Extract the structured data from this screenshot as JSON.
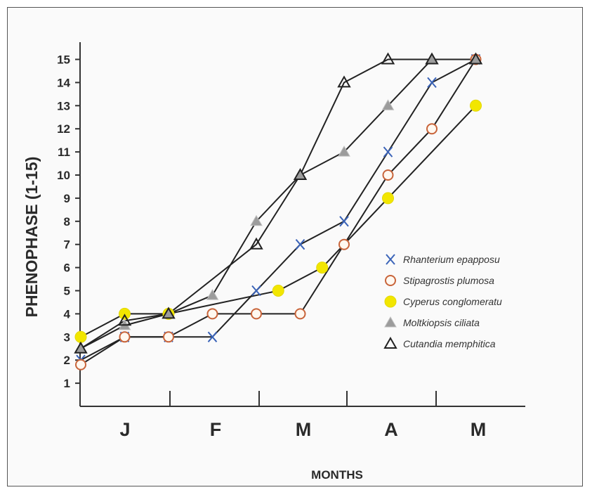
{
  "chart_data": {
    "type": "line",
    "xlabel": "MONTHS",
    "ylabel": "PHENOPHASE (1-15)",
    "x_tick_labels": [
      "J",
      "F",
      "M",
      "A",
      "M"
    ],
    "y_ticks": [
      1,
      2,
      3,
      4,
      5,
      6,
      7,
      8,
      9,
      10,
      11,
      12,
      13,
      14,
      15
    ],
    "ylim": [
      0,
      15
    ],
    "grid": false,
    "legend_position": "right",
    "series": [
      {
        "name": "Rhanterium epapposu",
        "marker": "x",
        "color": "#3a63b8",
        "x": [
          0,
          1,
          2,
          3,
          4,
          5,
          6,
          7,
          8,
          9
        ],
        "values": [
          2,
          3,
          3,
          3,
          5,
          7,
          8,
          11,
          14,
          15
        ]
      },
      {
        "name": "Stipagrostis plumosa",
        "marker": "circle",
        "color": "#c8643a",
        "x": [
          0,
          1,
          2,
          3,
          4,
          5,
          6,
          7,
          8,
          9
        ],
        "values": [
          1.8,
          3,
          3,
          4,
          4,
          4,
          7,
          10,
          12,
          15
        ]
      },
      {
        "name": "Cyperus conglomeratu",
        "marker": "filled-circle",
        "color": "#f2e600",
        "x": [
          0,
          1,
          2,
          4.5,
          5.5,
          7,
          9
        ],
        "values": [
          3,
          4,
          4,
          5,
          6,
          9,
          13
        ]
      },
      {
        "name": "Moltkiopsis ciliata",
        "marker": "filled-triangle",
        "color": "#9c9c9c",
        "x": [
          0,
          1,
          2,
          3,
          4,
          5,
          6,
          7,
          8,
          9
        ],
        "values": [
          2.5,
          3.5,
          4,
          4.8,
          8,
          10,
          11,
          13,
          15,
          15
        ]
      },
      {
        "name": "Cutandia memphitica",
        "marker": "triangle",
        "color": "#222222",
        "x": [
          0,
          1,
          2,
          4,
          5,
          6,
          7,
          8,
          9
        ],
        "values": [
          2.5,
          3.7,
          4,
          7,
          10,
          14,
          15,
          15,
          15
        ]
      }
    ]
  }
}
